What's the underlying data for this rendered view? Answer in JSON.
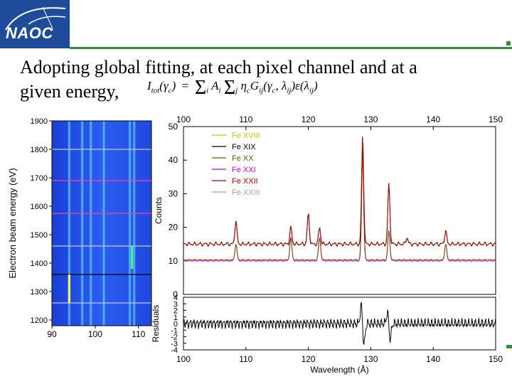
{
  "logo": {
    "text": "NAOC"
  },
  "caption": {
    "line1": "Adopting global fitting, at each pixel channel and at a",
    "line2": "given energy,"
  },
  "formula": {
    "lhs": "I",
    "lhs_sub": "tot",
    "lhs_arg": "(γ",
    "lhs_arg_sub": "c",
    "lhs_arg_end": ")",
    "eq": "=",
    "sum_i": "Σ",
    "i": "i",
    "A": "A",
    "A_sub": "i",
    "sum_j": "Σ",
    "j": "j",
    "rhs": "η",
    "rhs_sub": "c",
    "G": "G",
    "G_sub": "ij",
    "G_args": "(γ",
    "G_args_sub": "c",
    "G_args_mid": ", λ",
    "G_args_sub2": "ij",
    "G_args_end": ")ε(λ",
    "eps_sub": "ij",
    "eps_end": ")"
  },
  "colors": {
    "brand": "#1f4c9a",
    "accent": "#2f8f3a"
  },
  "chart_data": [
    {
      "type": "heatmap",
      "title": "",
      "ylabel": "Electron beam energy (eV)",
      "xlabel": "",
      "x_ticks": [
        "90",
        "100",
        "110"
      ],
      "y_ticks": [
        "1900",
        "1800",
        "1700",
        "1600",
        "1500",
        "1400",
        "1300",
        "1200"
      ],
      "xlim": [
        90,
        113
      ],
      "ylim": [
        1180,
        1900
      ],
      "horizontal_lines_eV": [
        1800,
        1690,
        1575,
        1460,
        1360,
        1260
      ],
      "vertical_streaks_A": [
        94,
        97,
        99,
        102,
        108,
        109
      ]
    },
    {
      "type": "line",
      "top_axis_ticks": [
        "100",
        "110",
        "120",
        "130",
        "140",
        "150"
      ],
      "x_ticks": [
        "100",
        "110",
        "120",
        "130",
        "140",
        "150"
      ],
      "xlabel": "Wavelength (Å)",
      "ylabel": "Counts",
      "y_ticks": [
        "0",
        "10",
        "20",
        "30",
        "40",
        "50"
      ],
      "xlim": [
        100,
        150
      ],
      "ylim": [
        0,
        50
      ],
      "legend": [
        {
          "name": "Fe XVIII",
          "color": "#c8c800"
        },
        {
          "name": "Fe XIX",
          "color": "#000000"
        },
        {
          "name": "Fe XX",
          "color": "#6b5a00"
        },
        {
          "name": "Fe XXI",
          "color": "#e000e0"
        },
        {
          "name": "Fe XXII",
          "color": "#c00000"
        },
        {
          "name": "Fe XXIII",
          "color": "#a0a0a0"
        }
      ],
      "baseline": 15,
      "peaks": [
        {
          "x": 108.4,
          "y": 22
        },
        {
          "x": 117.2,
          "y": 20
        },
        {
          "x": 120.0,
          "y": 24
        },
        {
          "x": 121.8,
          "y": 20
        },
        {
          "x": 128.7,
          "y": 47
        },
        {
          "x": 132.9,
          "y": 33
        },
        {
          "x": 135.8,
          "y": 17
        },
        {
          "x": 142.0,
          "y": 19
        }
      ],
      "model_peaks": [
        {
          "x": 108.4,
          "y": 15
        },
        {
          "x": 117.2,
          "y": 17
        },
        {
          "x": 121.8,
          "y": 17
        },
        {
          "x": 128.7,
          "y": 43
        },
        {
          "x": 132.9,
          "y": 19
        },
        {
          "x": 142.0,
          "y": 15
        }
      ]
    },
    {
      "type": "line",
      "ylabel": "Residuals",
      "y_ticks": [
        "4",
        "3",
        "2",
        "1",
        "0",
        "-1",
        "-2",
        "-3",
        "-4"
      ],
      "ylim": [
        -4,
        4
      ],
      "spikes": [
        {
          "x": 128.7,
          "y_max": 3.0,
          "y_min": -3.5
        },
        {
          "x": 132.9,
          "y_max": 1.8,
          "y_min": -2.5
        }
      ]
    }
  ]
}
